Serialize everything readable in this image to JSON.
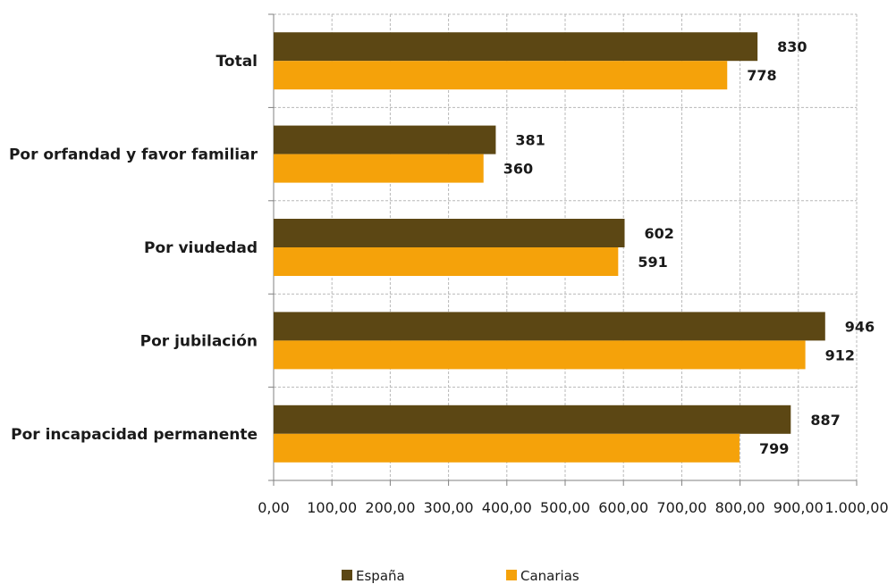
{
  "chart_data": {
    "type": "bar",
    "orientation": "horizontal",
    "categories": [
      "Total",
      "Por orfandad y favor familiar",
      "Por viudedad",
      "Por jubilación",
      "Por incapacidad permanente"
    ],
    "series": [
      {
        "name": "España",
        "color": "#5c4714",
        "values": [
          830,
          381,
          602,
          946,
          887
        ],
        "labels": [
          "830",
          "381",
          "602",
          "946",
          "887"
        ]
      },
      {
        "name": "Canarias",
        "color": "#f5a20a",
        "values": [
          778,
          360,
          591,
          912,
          799
        ],
        "labels": [
          "778",
          "360",
          "591",
          "912",
          "799"
        ]
      }
    ],
    "xlim": [
      0,
      1000
    ],
    "xticks": [
      0,
      100,
      200,
      300,
      400,
      500,
      600,
      700,
      800,
      900,
      1000
    ],
    "xtick_labels": [
      "0,00",
      "100,00",
      "200,00",
      "300,00",
      "400,00",
      "500,00",
      "600,00",
      "700,00",
      "800,00",
      "900,00",
      "1.000,00"
    ],
    "grid": true,
    "legend_position": "bottom"
  }
}
